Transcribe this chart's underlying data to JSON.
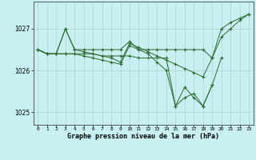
{
  "hours": [
    0,
    1,
    2,
    3,
    4,
    5,
    6,
    7,
    8,
    9,
    10,
    11,
    12,
    13,
    14,
    15,
    16,
    17,
    18,
    19,
    20,
    21,
    22,
    23
  ],
  "line1": [
    1026.5,
    1026.4,
    1026.4,
    1027.0,
    1026.5,
    1026.5,
    1026.5,
    1026.5,
    1026.5,
    1026.5,
    1026.7,
    1026.5,
    1026.5,
    1026.5,
    1026.5,
    1026.5,
    1026.5,
    1026.5,
    1026.5,
    1026.3,
    1026.8,
    1027.0,
    1027.2,
    1027.35
  ],
  "line2": [
    1026.5,
    1026.4,
    1026.4,
    1026.4,
    1026.4,
    1026.4,
    1026.4,
    1026.35,
    1026.3,
    1026.2,
    1026.65,
    1026.55,
    1026.45,
    1026.35,
    1026.25,
    1026.15,
    1026.05,
    1025.95,
    1025.85,
    1026.3,
    1027.0,
    1027.15,
    1027.25,
    1027.35
  ],
  "line3": [
    1026.5,
    1026.4,
    1026.4,
    1026.4,
    1026.4,
    1026.35,
    1026.3,
    1026.25,
    1026.2,
    1026.15,
    1026.6,
    1026.5,
    1026.4,
    1026.2,
    1026.0,
    1025.15,
    1025.35,
    1025.45,
    1025.15,
    1025.65,
    1026.3,
    null,
    null,
    null
  ],
  "line4": [
    1026.5,
    1026.4,
    1026.4,
    1027.0,
    1026.5,
    1026.45,
    1026.4,
    1026.35,
    1026.35,
    1026.35,
    1026.35,
    1026.3,
    1026.3,
    1026.3,
    1026.3,
    1025.15,
    1025.6,
    1025.35,
    1025.15,
    1025.65,
    null,
    null,
    null,
    null
  ],
  "line_color": "#2d6a2d",
  "bg_color": "#c8f0f0",
  "grid_color": "#aed4d4",
  "xlabel": "Graphe pression niveau de la mer (hPa)",
  "yticks": [
    1025,
    1026,
    1027
  ],
  "ylim": [
    1024.7,
    1027.65
  ],
  "xlim": [
    -0.5,
    23.5
  ]
}
